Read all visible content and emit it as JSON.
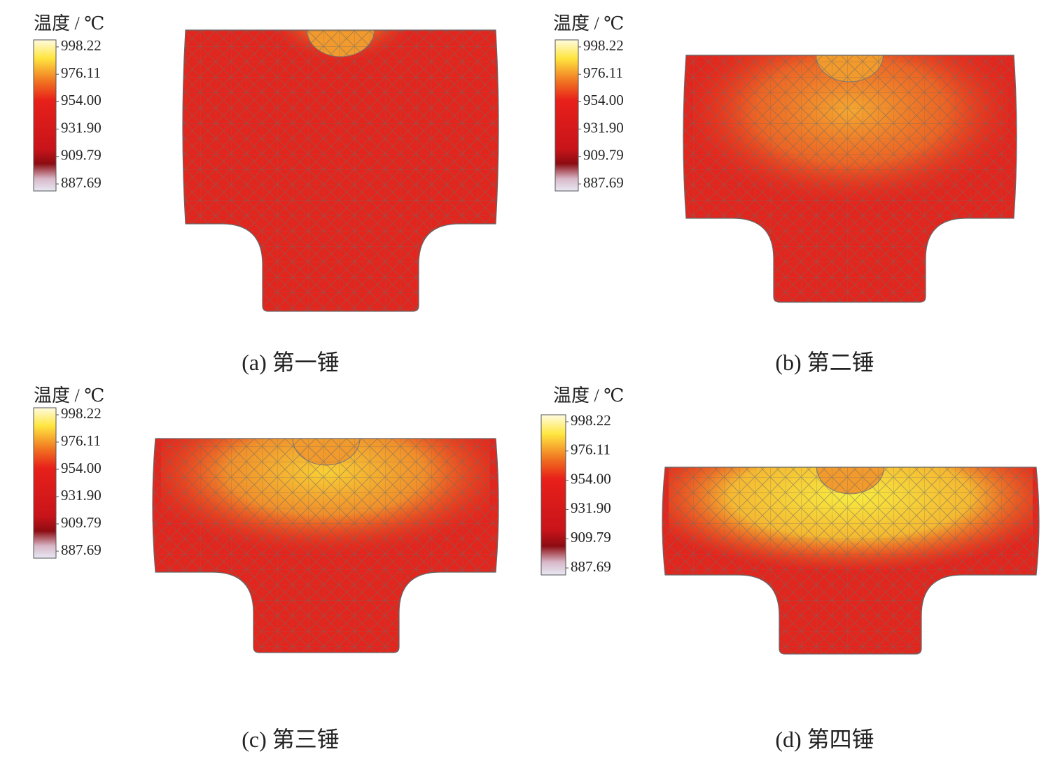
{
  "panels": [
    {
      "legend": {
        "title": "温度 / ℃",
        "ticks": [
          "998.22",
          "976.11",
          "954.00",
          "931.90",
          "909.79",
          "887.69"
        ]
      },
      "caption": "(a) 第一锤"
    },
    {
      "legend": {
        "title": "温度 / ℃",
        "ticks": [
          "998.22",
          "976.11",
          "954.00",
          "931.90",
          "909.79",
          "887.69"
        ]
      },
      "caption": "(b) 第二锤"
    },
    {
      "legend": {
        "title": "温度 / ℃",
        "ticks": [
          "998.22",
          "976.11",
          "954.00",
          "931.90",
          "909.79",
          "887.69"
        ]
      },
      "caption": "(c) 第三锤"
    },
    {
      "legend": {
        "title": "温度 / ℃",
        "ticks": [
          "998.22",
          "976.11",
          "954.00",
          "931.90",
          "909.79",
          "887.69"
        ]
      },
      "caption": "(d) 第四锤"
    }
  ]
}
